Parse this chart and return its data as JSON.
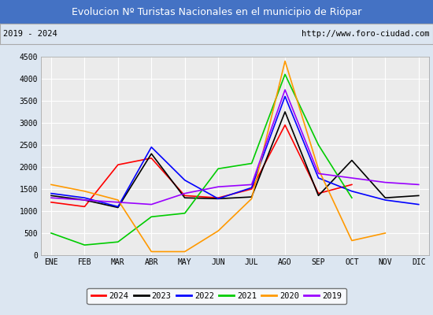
{
  "title": "Evolucion Nº Turistas Nacionales en el municipio de Riópar",
  "subtitle_left": "2019 - 2024",
  "subtitle_right": "http://www.foro-ciudad.com",
  "title_bg_color": "#4472c4",
  "title_text_color": "#ffffff",
  "months": [
    "ENE",
    "FEB",
    "MAR",
    "ABR",
    "MAY",
    "JUN",
    "JUL",
    "AGO",
    "SEP",
    "OCT",
    "NOV",
    "DIC"
  ],
  "series": {
    "2024": {
      "color": "#ff0000",
      "data": [
        1200,
        1100,
        2050,
        2200,
        1350,
        1300,
        1500,
        2950,
        1400,
        1600,
        null,
        null
      ]
    },
    "2023": {
      "color": "#000000",
      "data": [
        1350,
        1250,
        1080,
        2300,
        1300,
        1280,
        1320,
        3250,
        1350,
        2150,
        1300,
        1350
      ]
    },
    "2022": {
      "color": "#0000ff",
      "data": [
        1400,
        1300,
        1100,
        2450,
        1700,
        1280,
        1530,
        3600,
        1750,
        1450,
        1250,
        1150
      ]
    },
    "2021": {
      "color": "#00cc00",
      "data": [
        500,
        230,
        300,
        870,
        950,
        1960,
        2080,
        4100,
        2500,
        1300,
        null,
        null
      ]
    },
    "2020": {
      "color": "#ff9900",
      "data": [
        1600,
        1450,
        1250,
        80,
        80,
        550,
        1280,
        4400,
        1950,
        330,
        500,
        null
      ]
    },
    "2019": {
      "color": "#9900ff",
      "data": [
        1300,
        1250,
        1200,
        1150,
        1400,
        1550,
        1600,
        3750,
        1850,
        1750,
        1650,
        1600
      ]
    }
  },
  "ylim": [
    0,
    4500
  ],
  "yticks": [
    0,
    500,
    1000,
    1500,
    2000,
    2500,
    3000,
    3500,
    4000,
    4500
  ],
  "legend_order": [
    "2024",
    "2023",
    "2022",
    "2021",
    "2020",
    "2019"
  ],
  "plot_bg_color": "#ebebeb",
  "grid_color": "#ffffff",
  "outer_bg_color": "#dce6f1"
}
